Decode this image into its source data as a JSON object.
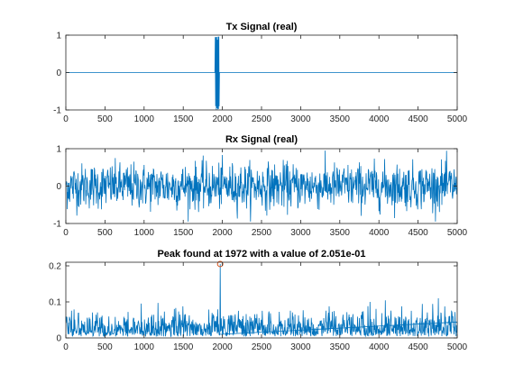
{
  "figure": {
    "background": "#ffffff",
    "axes_color": "#262626",
    "line_color": "#0072BD",
    "marker_color": "#D95319"
  },
  "chart_data": [
    {
      "type": "line",
      "title": "Tx Signal (real)",
      "xlabel": "",
      "ylabel": "",
      "xlim": [
        0,
        5000
      ],
      "ylim": [
        -1,
        1
      ],
      "xticks": [
        0,
        500,
        1000,
        1500,
        2000,
        2500,
        3000,
        3500,
        4000,
        4500,
        5000
      ],
      "yticks": [
        -1,
        0,
        1
      ],
      "grid": false,
      "signal": {
        "baseline": 0,
        "burst_start": 1905,
        "burst_end": 1960,
        "burst_amplitude": 1
      }
    },
    {
      "type": "line",
      "title": "Rx Signal (real)",
      "xlabel": "",
      "ylabel": "",
      "xlim": [
        0,
        5000
      ],
      "ylim": [
        -1,
        1
      ],
      "xticks": [
        0,
        500,
        1000,
        1500,
        2000,
        2500,
        3000,
        3500,
        4000,
        4500,
        5000
      ],
      "yticks": [
        -1,
        0,
        1
      ],
      "grid": false,
      "signal": {
        "noise_std": 0.3,
        "noise_max": 0.95
      }
    },
    {
      "type": "line",
      "title": "Peak found at 1972 with a value of 2.051e-01",
      "xlabel": "",
      "ylabel": "",
      "xlim": [
        0,
        5000
      ],
      "ylim": [
        0,
        0.21
      ],
      "xticks": [
        0,
        500,
        1000,
        1500,
        2000,
        2500,
        3000,
        3500,
        4000,
        4500,
        5000
      ],
      "yticks": [
        0,
        0.1,
        0.2
      ],
      "ytick_labels": [
        "0",
        "0.1",
        "0.2"
      ],
      "grid": false,
      "signal": {
        "noise_typical": 0.04,
        "noise_max": 0.11
      },
      "peak": {
        "x": 1972,
        "y": 0.2051
      }
    }
  ]
}
